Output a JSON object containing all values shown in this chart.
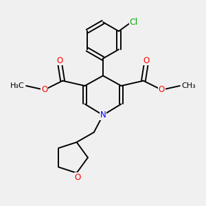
{
  "bg_color": "#f0f0f0",
  "bond_color": "#000000",
  "N_color": "#0000ff",
  "O_color": "#ff0000",
  "Cl_color": "#00aa00",
  "line_width": 1.4,
  "font_size": 8.5,
  "figsize": [
    3.0,
    3.0
  ],
  "dpi": 100,
  "xlim": [
    0,
    10
  ],
  "ylim": [
    0,
    10
  ]
}
